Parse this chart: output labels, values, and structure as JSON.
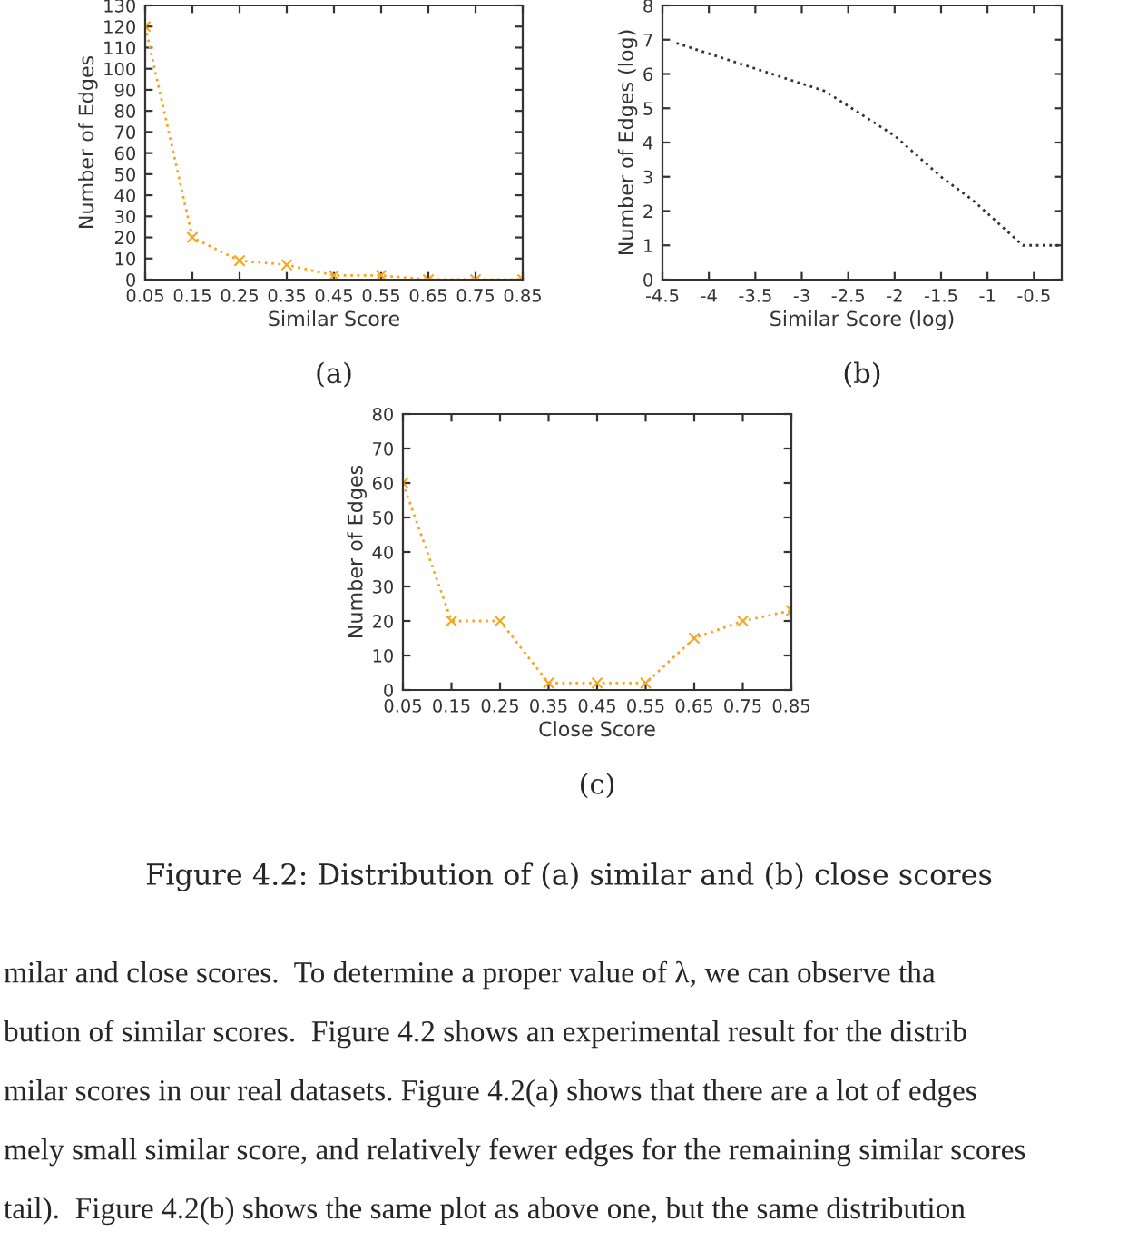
{
  "chart_data": [
    {
      "type": "line",
      "title": "(a)",
      "xlabel": "Similar Score",
      "ylabel": "Number of Edges",
      "x": [
        0.05,
        0.15,
        0.25,
        0.35,
        0.45,
        0.55,
        0.65,
        0.75,
        0.85
      ],
      "series": [
        {
          "color": "#f5a623",
          "values": [
            120,
            20,
            9,
            7,
            2,
            2,
            0,
            0,
            0
          ]
        }
      ],
      "xlim": [
        0.05,
        0.85
      ],
      "xticks": [
        0.05,
        0.15,
        0.25,
        0.35,
        0.45,
        0.55,
        0.65,
        0.75,
        0.85
      ],
      "ylim": [
        0,
        130
      ],
      "yticks": [
        0,
        10,
        20,
        30,
        40,
        50,
        60,
        70,
        80,
        90,
        100,
        110,
        120,
        130
      ],
      "marker": "cross",
      "line_style": "dotted",
      "grid": false,
      "legend": false
    },
    {
      "type": "line",
      "title": "(b)",
      "xlabel": "Similar Score (log)",
      "ylabel": "Number of Edges (log)",
      "x": [
        -4.35,
        -2.75,
        -2.0,
        -1.5,
        -1.15,
        -0.62,
        -0.2
      ],
      "series": [
        {
          "color": "#333333",
          "values": [
            6.9,
            5.5,
            4.2,
            3.0,
            2.3,
            1.0,
            1.0
          ]
        }
      ],
      "xlim": [
        -4.5,
        -0.2
      ],
      "xticks": [
        -4.5,
        -4,
        -3.5,
        -3,
        -2.5,
        -2,
        -1.5,
        -1,
        -0.5
      ],
      "ylim": [
        0,
        8
      ],
      "yticks": [
        0,
        1,
        2,
        3,
        4,
        5,
        6,
        7,
        8
      ],
      "marker": "none",
      "line_style": "dotted",
      "grid": false,
      "legend": false
    },
    {
      "type": "line",
      "title": "(c)",
      "xlabel": "Close Score",
      "ylabel": "Number of Edges",
      "x": [
        0.05,
        0.15,
        0.25,
        0.35,
        0.45,
        0.55,
        0.65,
        0.75,
        0.85
      ],
      "series": [
        {
          "color": "#f5a623",
          "values": [
            60,
            20,
            20,
            2,
            2,
            2,
            15,
            20,
            23
          ]
        }
      ],
      "xlim": [
        0.05,
        0.85
      ],
      "xticks": [
        0.05,
        0.15,
        0.25,
        0.35,
        0.45,
        0.55,
        0.65,
        0.75,
        0.85
      ],
      "ylim": [
        0,
        80
      ],
      "yticks": [
        0,
        10,
        20,
        30,
        40,
        50,
        60,
        70,
        80
      ],
      "marker": "cross",
      "line_style": "dotted",
      "grid": false,
      "legend": false,
      "annotations": [
        "Figure 4.2: Distribution of (a) similar and (b) close scores",
        "milar and close scores.  To determine a proper value of λ, we can observe tha",
        "bution of similar scores.  Figure 4.2 shows an experimental result for the distrib",
        "milar scores in our real datasets. Figure 4.2(a) shows that there are a lot of edges",
        "mely small similar score, and relatively fewer edges for the remaining similar scores",
        "tail).  Figure 4.2(b) shows the same plot as above one, but the same distribution"
      ]
    }
  ]
}
